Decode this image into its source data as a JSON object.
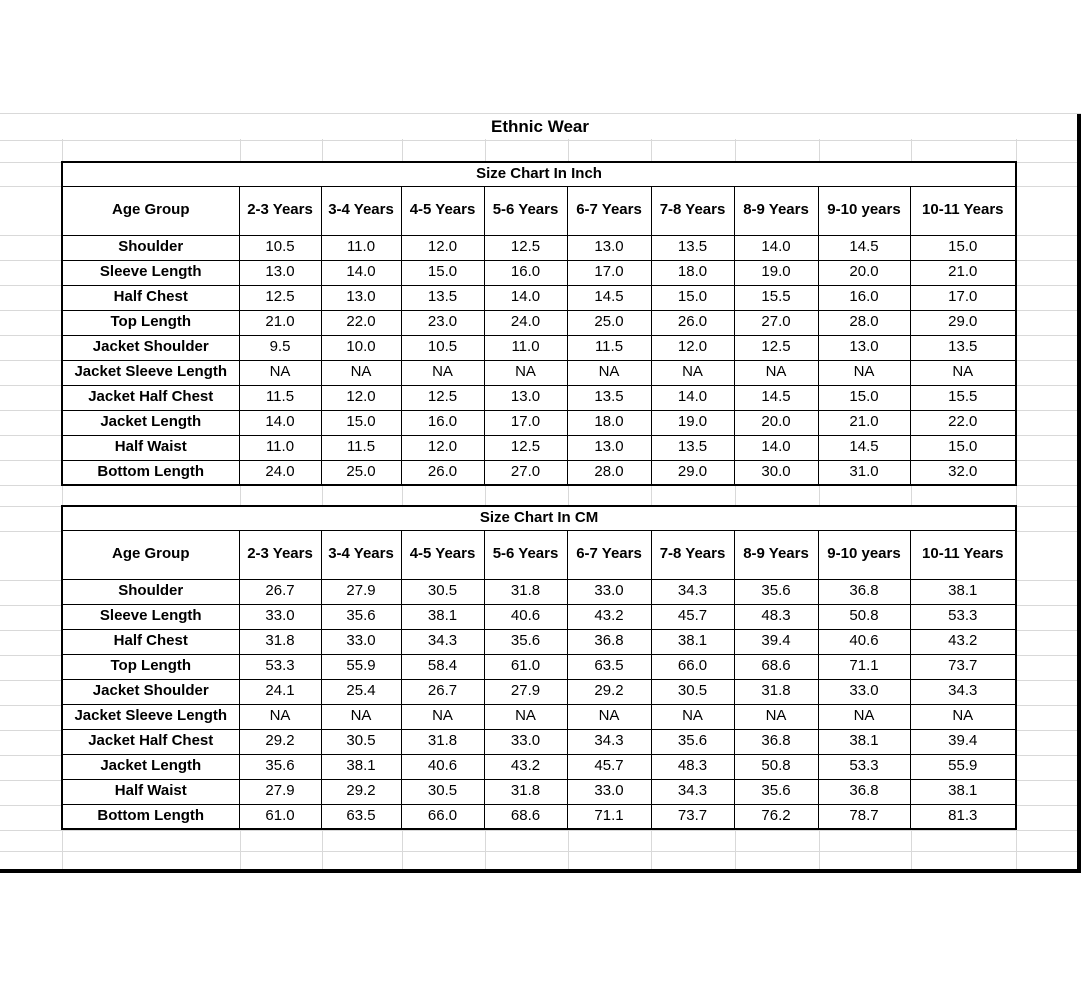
{
  "sheet": {
    "title": "Ethnic Wear"
  },
  "tables": [
    {
      "title": "Size Chart In Inch",
      "header_label": "Age Group",
      "columns": [
        "2-3 Years",
        "3-4 Years",
        "4-5 Years",
        "5-6 Years",
        "6-7 Years",
        "7-8 Years",
        "8-9 Years",
        "9-10 years",
        "10-11 Years"
      ],
      "rows": [
        {
          "label": "Shoulder",
          "values": [
            "10.5",
            "11.0",
            "12.0",
            "12.5",
            "13.0",
            "13.5",
            "14.0",
            "14.5",
            "15.0"
          ]
        },
        {
          "label": "Sleeve Length",
          "values": [
            "13.0",
            "14.0",
            "15.0",
            "16.0",
            "17.0",
            "18.0",
            "19.0",
            "20.0",
            "21.0"
          ]
        },
        {
          "label": "Half Chest",
          "values": [
            "12.5",
            "13.0",
            "13.5",
            "14.0",
            "14.5",
            "15.0",
            "15.5",
            "16.0",
            "17.0"
          ]
        },
        {
          "label": "Top Length",
          "values": [
            "21.0",
            "22.0",
            "23.0",
            "24.0",
            "25.0",
            "26.0",
            "27.0",
            "28.0",
            "29.0"
          ]
        },
        {
          "label": "Jacket Shoulder",
          "values": [
            "9.5",
            "10.0",
            "10.5",
            "11.0",
            "11.5",
            "12.0",
            "12.5",
            "13.0",
            "13.5"
          ]
        },
        {
          "label": "Jacket Sleeve Length",
          "values": [
            "NA",
            "NA",
            "NA",
            "NA",
            "NA",
            "NA",
            "NA",
            "NA",
            "NA"
          ]
        },
        {
          "label": "Jacket Half Chest",
          "values": [
            "11.5",
            "12.0",
            "12.5",
            "13.0",
            "13.5",
            "14.0",
            "14.5",
            "15.0",
            "15.5"
          ]
        },
        {
          "label": "Jacket Length",
          "values": [
            "14.0",
            "15.0",
            "16.0",
            "17.0",
            "18.0",
            "19.0",
            "20.0",
            "21.0",
            "22.0"
          ]
        },
        {
          "label": "Half Waist",
          "values": [
            "11.0",
            "11.5",
            "12.0",
            "12.5",
            "13.0",
            "13.5",
            "14.0",
            "14.5",
            "15.0"
          ]
        },
        {
          "label": "Bottom Length",
          "values": [
            "24.0",
            "25.0",
            "26.0",
            "27.0",
            "28.0",
            "29.0",
            "30.0",
            "31.0",
            "32.0"
          ]
        }
      ]
    },
    {
      "title": "Size Chart In CM",
      "header_label": "Age Group",
      "columns": [
        "2-3 Years",
        "3-4 Years",
        "4-5 Years",
        "5-6 Years",
        "6-7 Years",
        "7-8 Years",
        "8-9 Years",
        "9-10 years",
        "10-11 Years"
      ],
      "rows": [
        {
          "label": "Shoulder",
          "values": [
            "26.7",
            "27.9",
            "30.5",
            "31.8",
            "33.0",
            "34.3",
            "35.6",
            "36.8",
            "38.1"
          ]
        },
        {
          "label": "Sleeve Length",
          "values": [
            "33.0",
            "35.6",
            "38.1",
            "40.6",
            "43.2",
            "45.7",
            "48.3",
            "50.8",
            "53.3"
          ]
        },
        {
          "label": "Half Chest",
          "values": [
            "31.8",
            "33.0",
            "34.3",
            "35.6",
            "36.8",
            "38.1",
            "39.4",
            "40.6",
            "43.2"
          ]
        },
        {
          "label": "Top Length",
          "values": [
            "53.3",
            "55.9",
            "58.4",
            "61.0",
            "63.5",
            "66.0",
            "68.6",
            "71.1",
            "73.7"
          ]
        },
        {
          "label": "Jacket Shoulder",
          "values": [
            "24.1",
            "25.4",
            "26.7",
            "27.9",
            "29.2",
            "30.5",
            "31.8",
            "33.0",
            "34.3"
          ]
        },
        {
          "label": "Jacket Sleeve Length",
          "values": [
            "NA",
            "NA",
            "NA",
            "NA",
            "NA",
            "NA",
            "NA",
            "NA",
            "NA"
          ]
        },
        {
          "label": "Jacket Half Chest",
          "values": [
            "29.2",
            "30.5",
            "31.8",
            "33.0",
            "34.3",
            "35.6",
            "36.8",
            "38.1",
            "39.4"
          ]
        },
        {
          "label": "Jacket Length",
          "values": [
            "35.6",
            "38.1",
            "40.6",
            "43.2",
            "45.7",
            "48.3",
            "50.8",
            "53.3",
            "55.9"
          ]
        },
        {
          "label": "Half Waist",
          "values": [
            "27.9",
            "29.2",
            "30.5",
            "31.8",
            "33.0",
            "34.3",
            "35.6",
            "36.8",
            "38.1"
          ]
        },
        {
          "label": "Bottom Length",
          "values": [
            "61.0",
            "63.5",
            "66.0",
            "68.6",
            "71.1",
            "73.7",
            "76.2",
            "78.7",
            "81.3"
          ]
        }
      ]
    }
  ],
  "colors": {
    "grid_line": "#d9d9d9",
    "table_border": "#000000",
    "text": "#000000",
    "background": "#ffffff"
  }
}
